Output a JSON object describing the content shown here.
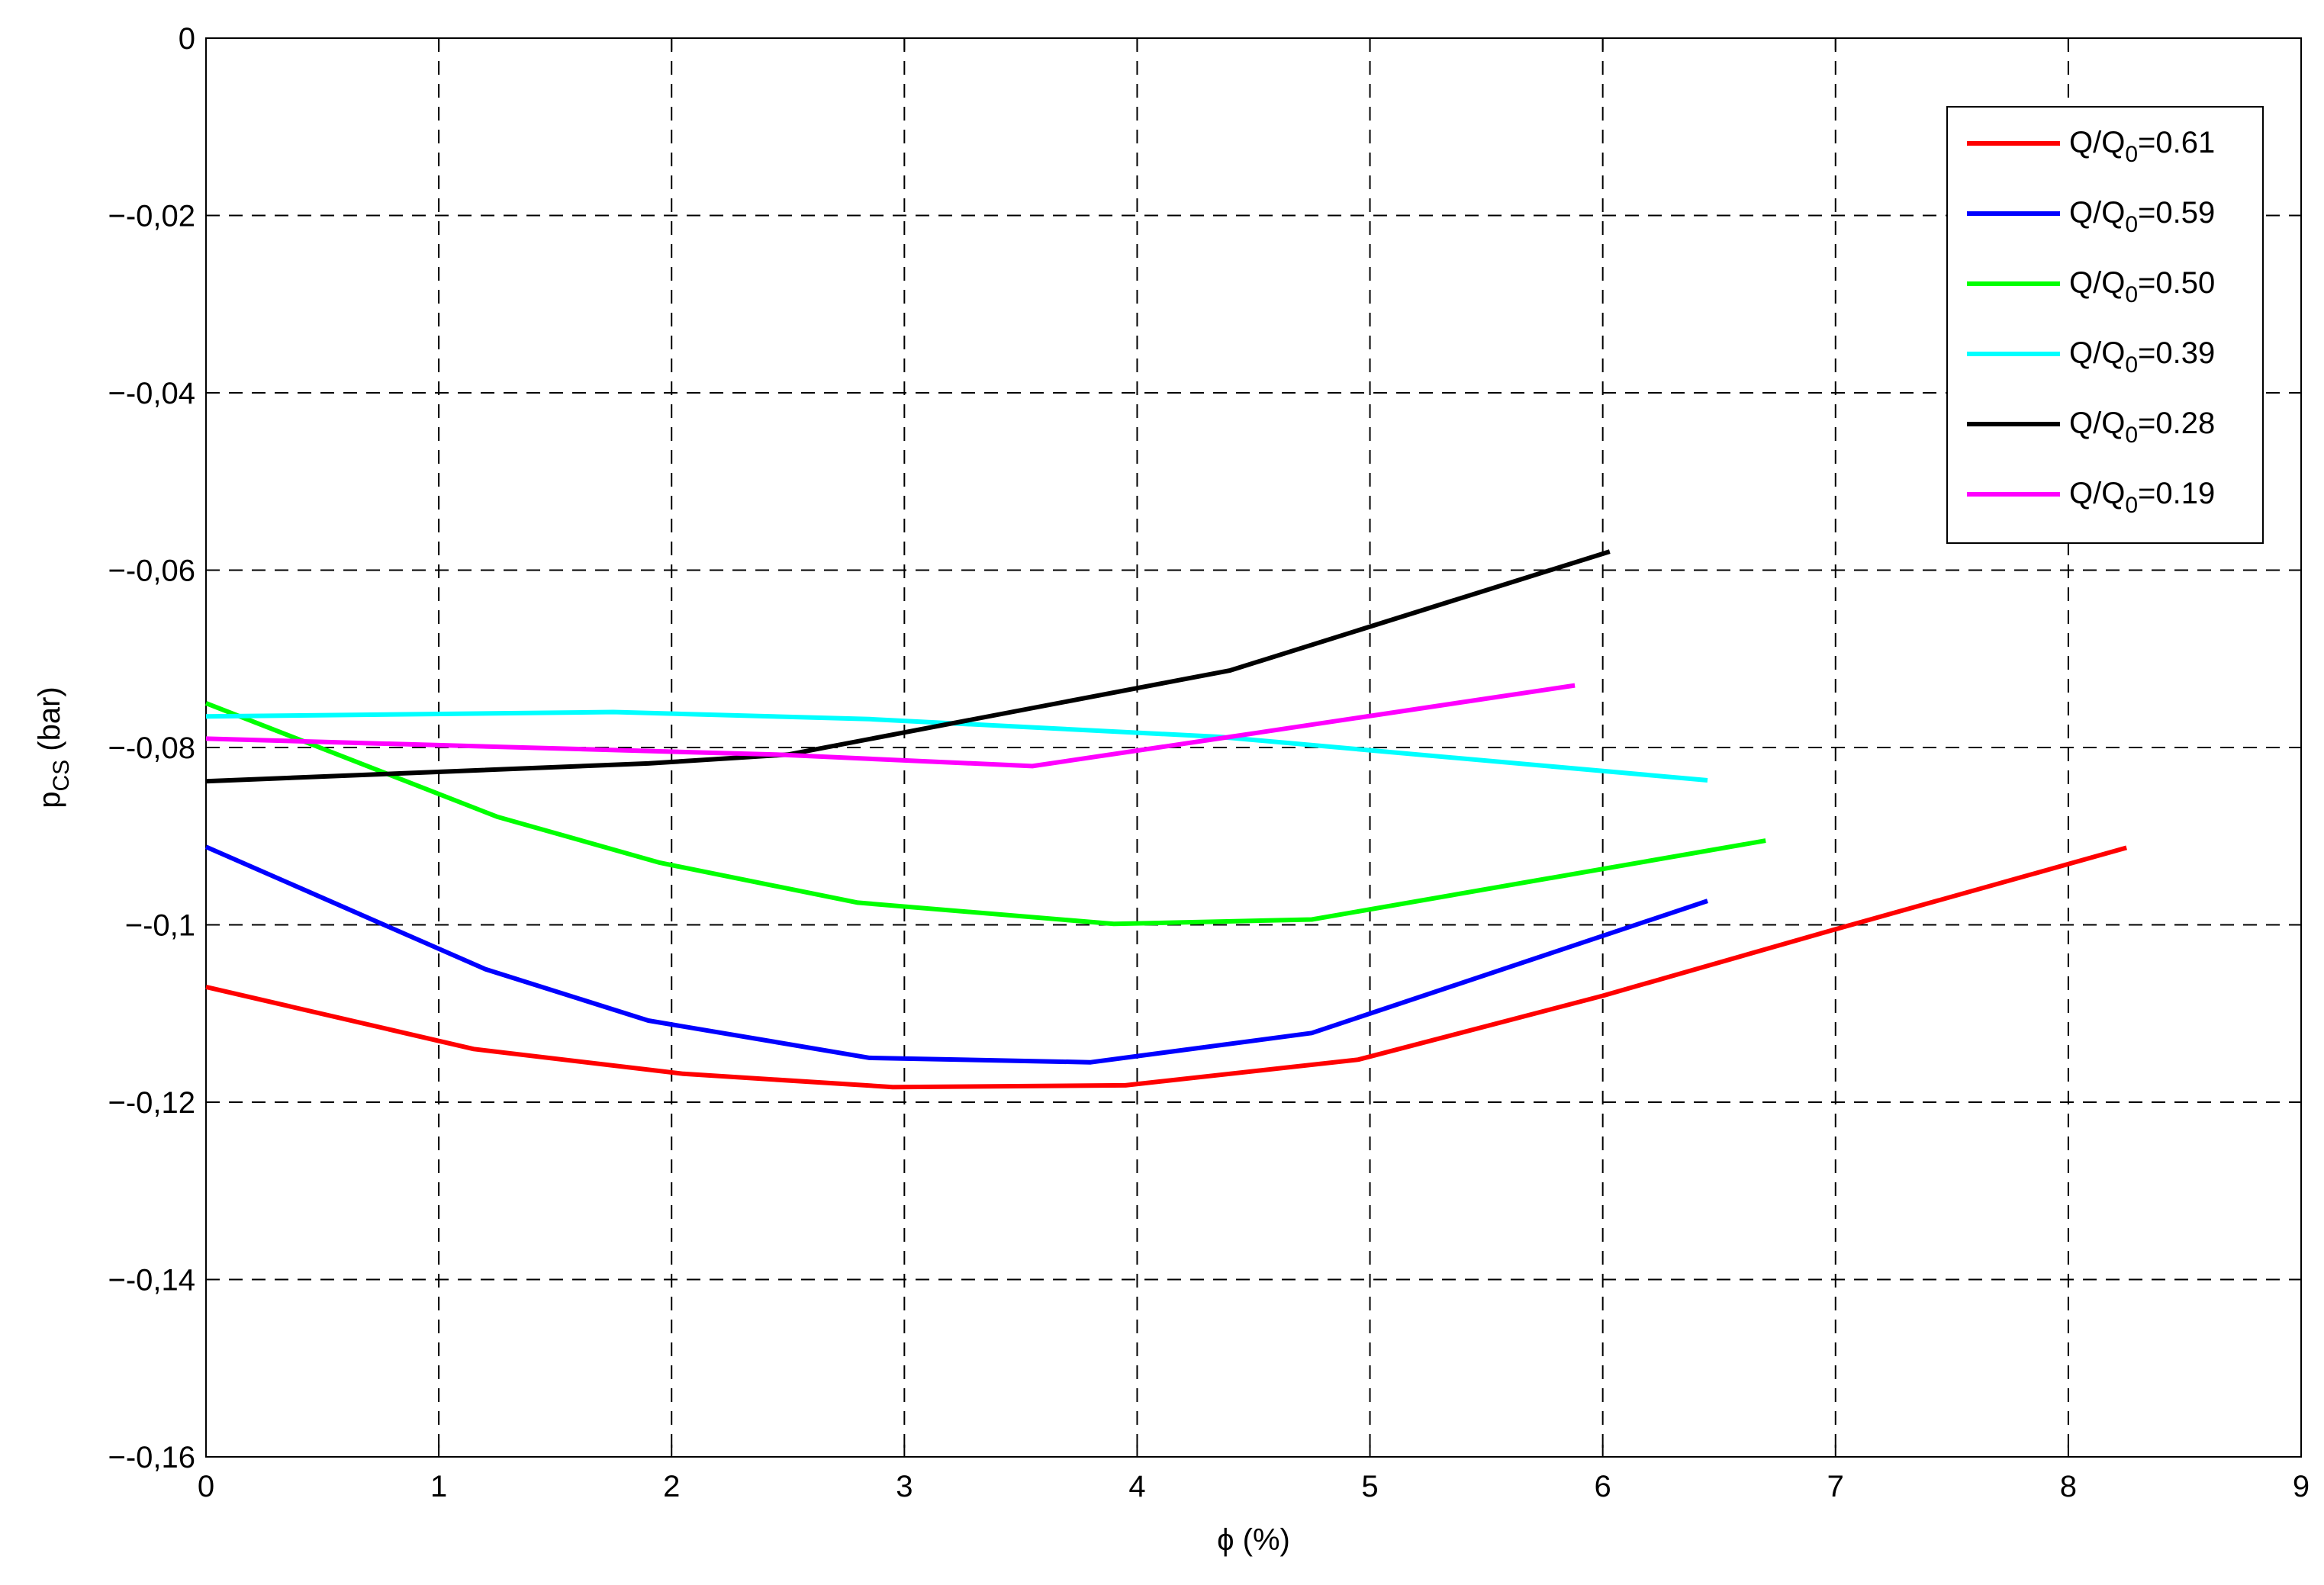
{
  "chart_data": {
    "type": "line",
    "xlabel": "ϕ (%)",
    "ylabel": {
      "main": "p",
      "sub": "CS",
      "rest": " (bar)"
    },
    "xlim": [
      0,
      9
    ],
    "ylim": [
      -0.16,
      0
    ],
    "xticks": [
      0,
      1,
      2,
      3,
      4,
      5,
      6,
      7,
      8,
      9
    ],
    "xtick_labels": [
      "0",
      "1",
      "2",
      "3",
      "4",
      "5",
      "6",
      "7",
      "8",
      "9"
    ],
    "yticks": [
      0,
      -0.02,
      -0.04,
      -0.06,
      -0.08,
      -0.1,
      -0.12,
      -0.14,
      -0.16
    ],
    "ytick_labels": [
      "0",
      "−-0,02",
      "−-0,04",
      "−-0,06",
      "−-0,08",
      "−-0,1",
      "−-0,12",
      "−-0,14",
      "−-0,16"
    ],
    "grid": true,
    "legend_position": "top-right",
    "series": [
      {
        "name": {
          "main": "Q/Q",
          "sub": "0",
          "rest": "=0.61"
        },
        "color": "#ff0000",
        "x": [
          0,
          1.15,
          2.05,
          2.95,
          3.95,
          4.95,
          6.0,
          7.0,
          8.25
        ],
        "y": [
          -0.107,
          -0.114,
          -0.1168,
          -0.1183,
          -0.1181,
          -0.1152,
          -0.108,
          -0.1005,
          -0.0913
        ]
      },
      {
        "name": {
          "main": "Q/Q",
          "sub": "0",
          "rest": "=0.59"
        },
        "color": "#0000ff",
        "x": [
          0,
          1.2,
          1.9,
          2.85,
          3.8,
          4.75,
          6.45
        ],
        "y": [
          -0.0912,
          -0.105,
          -0.1108,
          -0.115,
          -0.1155,
          -0.1122,
          -0.0973
        ]
      },
      {
        "name": {
          "main": "Q/Q",
          "sub": "0",
          "rest": "=0.50"
        },
        "color": "#00ff00",
        "x": [
          0,
          1.25,
          1.95,
          2.8,
          3.9,
          4.75,
          6.7
        ],
        "y": [
          -0.075,
          -0.0878,
          -0.093,
          -0.0975,
          -0.0999,
          -0.0994,
          -0.0905
        ]
      },
      {
        "name": {
          "main": "Q/Q",
          "sub": "0",
          "rest": "=0.39"
        },
        "color": "#00ffff",
        "x": [
          0,
          1.75,
          2.85,
          4.35,
          6.45
        ],
        "y": [
          -0.0765,
          -0.076,
          -0.0768,
          -0.0788,
          -0.0837
        ]
      },
      {
        "name": {
          "main": "Q/Q",
          "sub": "0",
          "rest": "=0.28"
        },
        "color": "#000000",
        "x": [
          0,
          1.9,
          2.5,
          4.4,
          6.03
        ],
        "y": [
          -0.0838,
          -0.0818,
          -0.0808,
          -0.0713,
          -0.0579
        ]
      },
      {
        "name": {
          "main": "Q/Q",
          "sub": "0",
          "rest": "=0.19"
        },
        "color": "#ff00ff",
        "x": [
          0,
          2.45,
          3.55,
          4.4,
          5.88
        ],
        "y": [
          -0.079,
          -0.0808,
          -0.0821,
          -0.0788,
          -0.073
        ]
      }
    ]
  }
}
